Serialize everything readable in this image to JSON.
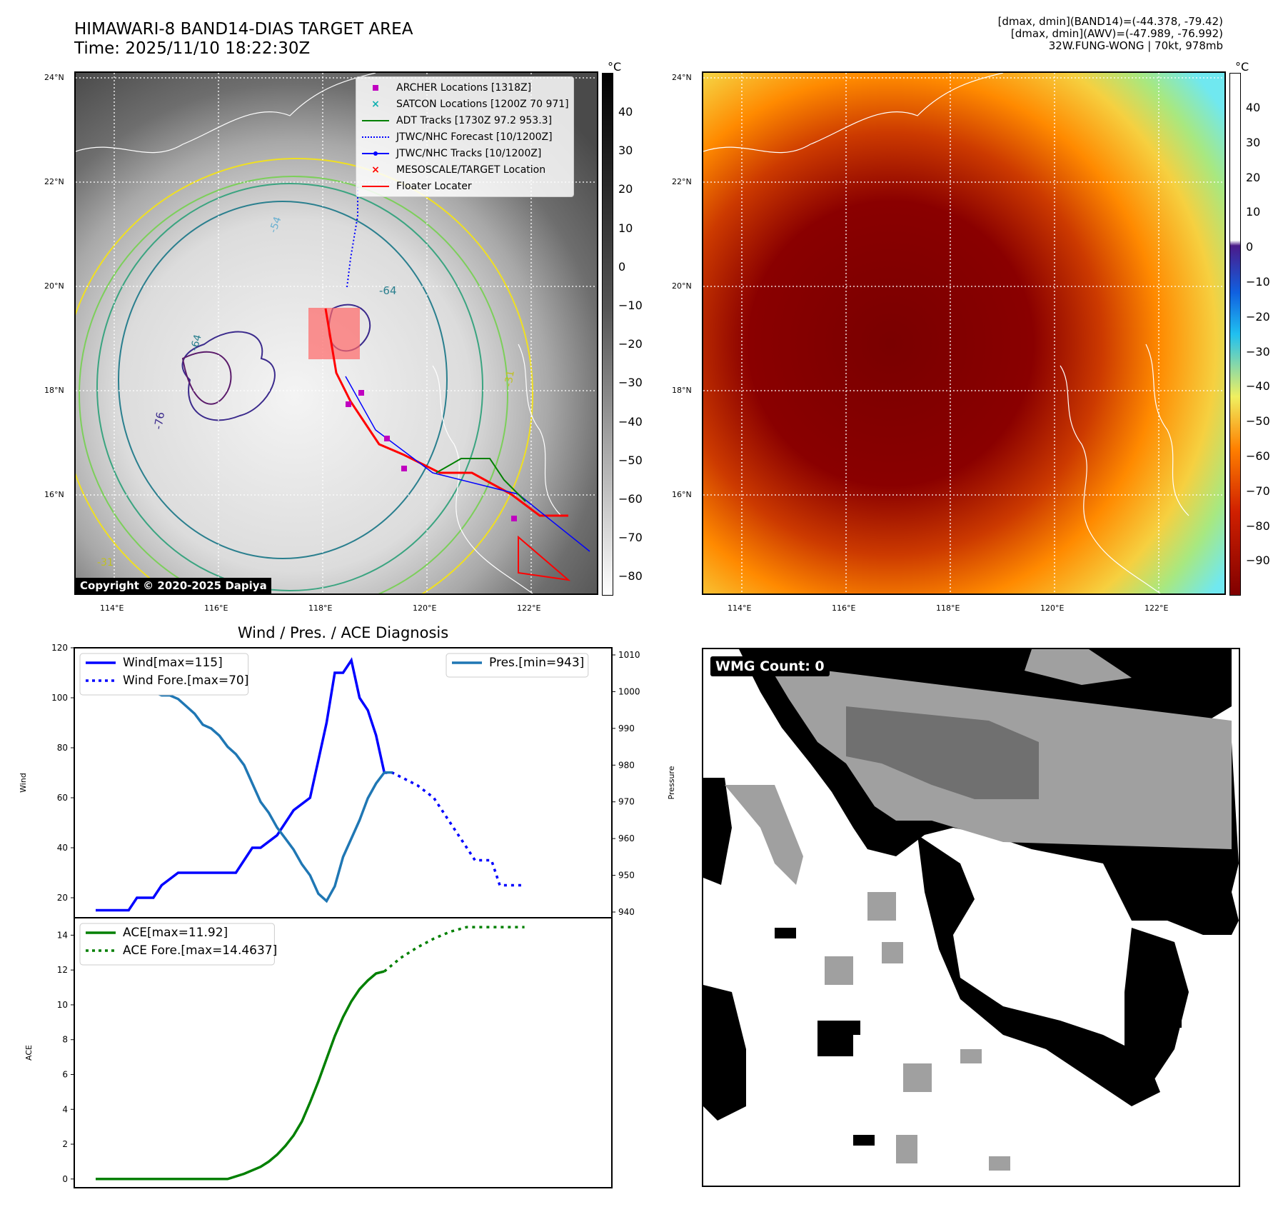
{
  "header": {
    "title_line1": "HIMAWARI-8 BAND14-DIAS TARGET AREA",
    "title_line2": "Time: 2025/11/10 18:22:30Z",
    "info_line1": "[dmax, dmin](BAND14)=(-44.378, -79.42)",
    "info_line2": "[dmax, dmin](AWV)=(-47.989, -76.992)",
    "info_line3": "32W.FUNG-WONG | 70kt, 978mb"
  },
  "map_axes": {
    "lon_labels": [
      "114°E",
      "116°E",
      "118°E",
      "120°E",
      "122°E"
    ],
    "lat_labels": [
      "24°N",
      "22°N",
      "20°N",
      "18°N",
      "16°N"
    ]
  },
  "ir_panel": {
    "colorbar_unit": "°C",
    "colorbar_ticks": [
      "40",
      "30",
      "20",
      "10",
      "0",
      "−10",
      "−20",
      "−30",
      "−40",
      "−50",
      "−60",
      "−70",
      "−80"
    ],
    "contour_labels": [
      "-54",
      "-64",
      "-76",
      "-31",
      "-64",
      "-31"
    ],
    "copyright": "Copyright © 2020-2025 Dapiya",
    "legend": [
      {
        "label": "ARCHER Locations [1318Z]",
        "color": "#c000c0",
        "marker": "square"
      },
      {
        "label": "SATCON Locations [1200Z 70 971]",
        "color": "#10b0b0",
        "marker": "x"
      },
      {
        "label": "ADT Tracks [1730Z 97.2 953.3]",
        "color": "#008000",
        "marker": "line"
      },
      {
        "label": "JTWC/NHC Forecast [10/1200Z]",
        "color": "#0000ff",
        "marker": "dotted"
      },
      {
        "label": "JTWC/NHC Tracks [10/1200Z]",
        "color": "#0000ff",
        "marker": "line-dot"
      },
      {
        "label": "MESOSCALE/TARGET Location",
        "color": "#ff0000",
        "marker": "x"
      },
      {
        "label": "Floater Locater",
        "color": "#ff0000",
        "marker": "line"
      }
    ]
  },
  "awv_panel": {
    "colorbar_unit": "°C",
    "colorbar_ticks": [
      "40",
      "30",
      "20",
      "10",
      "0",
      "−10",
      "−20",
      "−30",
      "−40",
      "−50",
      "−60",
      "−70",
      "−80",
      "−90"
    ]
  },
  "wmg_panel": {
    "label": "WMG Count: 0"
  },
  "colors": {
    "wind": "#0000ff",
    "pressure": "#1f77b4",
    "ace": "#008000",
    "track_red": "#ff0000"
  },
  "chart_data": [
    {
      "type": "line",
      "title": "Wind / Pres. / ACE Diagnosis",
      "ylabel": "Wind",
      "ylabel_right": "Pressure",
      "ylim": [
        12,
        120
      ],
      "ylim_right": [
        940,
        1010
      ],
      "yticks": [
        20,
        40,
        60,
        80,
        100,
        120
      ],
      "yticks_right": [
        940,
        950,
        960,
        970,
        980,
        990,
        1000,
        1010
      ],
      "xlim": [
        0,
        60
      ],
      "series": [
        {
          "name": "Wind[max=115]",
          "axis": "left",
          "style": "solid",
          "x": [
            0,
            3,
            4,
            5,
            7,
            8,
            10,
            12,
            14,
            16,
            17,
            18,
            19,
            20,
            22,
            24,
            26,
            27,
            28,
            29,
            30,
            31,
            32,
            33,
            34,
            35
          ],
          "y": [
            15,
            15,
            15,
            20,
            20,
            25,
            30,
            30,
            30,
            30,
            30,
            35,
            40,
            40,
            45,
            55,
            60,
            75,
            90,
            110,
            110,
            115,
            100,
            95,
            85,
            70
          ]
        },
        {
          "name": "Wind Fore.[max=70]",
          "axis": "left",
          "style": "dotted",
          "x": [
            35,
            36,
            39,
            41,
            43,
            45,
            46,
            48,
            49,
            50,
            52
          ],
          "y": [
            70,
            70,
            65,
            60,
            50,
            40,
            35,
            35,
            25,
            25,
            25
          ]
        },
        {
          "name": "Pres.[min=943]",
          "axis": "right",
          "style": "solid",
          "x": [
            0,
            1,
            2,
            3,
            4,
            5,
            6,
            7,
            8,
            9,
            10,
            11,
            12,
            13,
            14,
            15,
            16,
            17,
            18,
            19,
            20,
            21,
            22,
            23,
            24,
            25,
            26,
            27,
            28,
            29,
            30,
            31,
            32,
            33,
            34,
            35,
            36
          ],
          "y": [
            1010,
            1007,
            1006,
            1005,
            1004,
            1002,
            1001,
            1000,
            999,
            999,
            998,
            996,
            994,
            991,
            990,
            988,
            985,
            983,
            980,
            975,
            970,
            967,
            963,
            960,
            957,
            953,
            950,
            945,
            943,
            947,
            955,
            960,
            965,
            971,
            975,
            978,
            978
          ]
        }
      ]
    },
    {
      "type": "line",
      "ylabel": "ACE",
      "ylim": [
        -0.5,
        15
      ],
      "yticks": [
        0,
        2,
        4,
        6,
        8,
        10,
        12,
        14
      ],
      "xlim": [
        0,
        60
      ],
      "series": [
        {
          "name": "ACE[max=11.92]",
          "style": "solid",
          "x": [
            0,
            4,
            8,
            12,
            14,
            16,
            18,
            20,
            21,
            22,
            23,
            24,
            25,
            26,
            27,
            28,
            29,
            30,
            31,
            32,
            33,
            34,
            35
          ],
          "y": [
            0,
            0,
            0,
            0,
            0,
            0,
            0.3,
            0.7,
            1.0,
            1.4,
            1.9,
            2.5,
            3.3,
            4.4,
            5.6,
            6.9,
            8.2,
            9.3,
            10.2,
            10.9,
            11.4,
            11.8,
            11.92
          ]
        },
        {
          "name": "ACE Fore.[max=14.4637]",
          "style": "dotted",
          "x": [
            35,
            37,
            39,
            41,
            43,
            45,
            48,
            50,
            52
          ],
          "y": [
            11.92,
            12.7,
            13.3,
            13.8,
            14.2,
            14.4637,
            14.4637,
            14.4637,
            14.4637
          ]
        }
      ]
    }
  ]
}
